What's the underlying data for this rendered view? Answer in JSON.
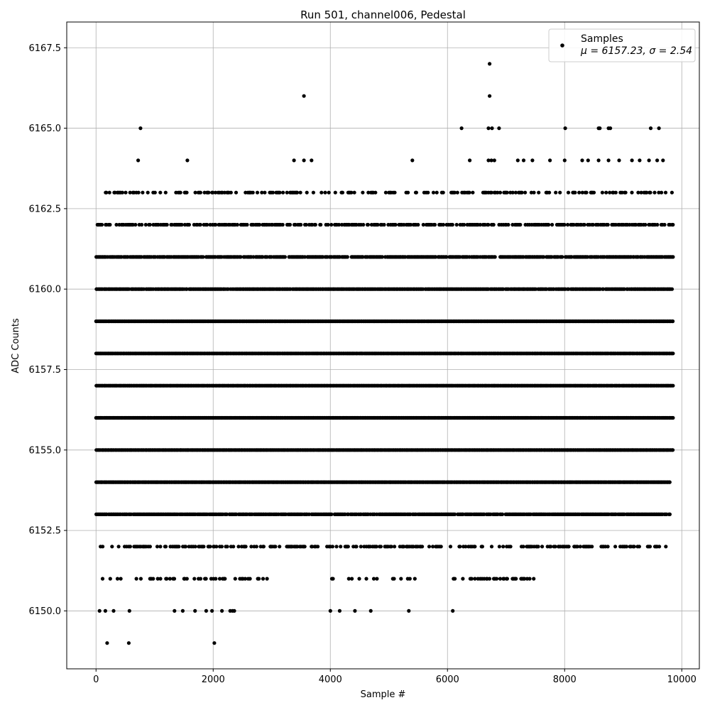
{
  "chart_data": {
    "type": "scatter",
    "title": "Run 501, channel006, Pedestal",
    "xlabel": "Sample #",
    "ylabel": "ADC Counts",
    "xlim": [
      -500,
      10300
    ],
    "ylim": [
      6148.2,
      6168.3
    ],
    "xticks": [
      0,
      2000,
      4000,
      6000,
      8000,
      10000
    ],
    "xtick_labels": [
      "0",
      "2000",
      "4000",
      "6000",
      "8000",
      "10000"
    ],
    "yticks": [
      6150.0,
      6152.5,
      6155.0,
      6157.5,
      6160.0,
      6162.5,
      6165.0,
      6167.5
    ],
    "ytick_labels": [
      "6150.0",
      "6152.5",
      "6155.0",
      "6157.5",
      "6160.0",
      "6162.5",
      "6165.0",
      "6167.5"
    ],
    "grid": true,
    "legend_position": "top-right",
    "marker_color": "#000000",
    "series": [
      {
        "name": "Samples",
        "name_line2": "μ = 6157.23, σ = 2.54",
        "x_range": [
          0,
          9850
        ],
        "sample_count": 9850,
        "mean": 6157.23,
        "sigma": 2.54,
        "dense_levels": [
          {
            "y": 6151,
            "density": 0.25,
            "x_segments": [
              [
                0,
                2950
              ],
              [
                4000,
                5500
              ],
              [
                6100,
                7650
              ]
            ]
          },
          {
            "y": 6152,
            "density": 0.45,
            "x_segments": [
              [
                0,
                2500
              ],
              [
                2500,
                5900
              ],
              [
                6050,
                9800
              ]
            ]
          },
          {
            "y": 6153,
            "density": 0.9,
            "x_segments": [
              [
                0,
                9800
              ]
            ]
          },
          {
            "y": 6154,
            "density": 1.0,
            "x_segments": [
              [
                0,
                9800
              ]
            ]
          },
          {
            "y": 6155,
            "density": 1.0,
            "x_segments": [
              [
                0,
                9850
              ]
            ]
          },
          {
            "y": 6156,
            "density": 1.0,
            "x_segments": [
              [
                0,
                9850
              ]
            ]
          },
          {
            "y": 6157,
            "density": 1.0,
            "x_segments": [
              [
                0,
                9850
              ]
            ]
          },
          {
            "y": 6158,
            "density": 1.0,
            "x_segments": [
              [
                0,
                9850
              ]
            ]
          },
          {
            "y": 6159,
            "density": 1.0,
            "x_segments": [
              [
                0,
                9850
              ]
            ]
          },
          {
            "y": 6160,
            "density": 0.95,
            "x_segments": [
              [
                0,
                9850
              ]
            ]
          },
          {
            "y": 6161,
            "density": 0.85,
            "x_segments": [
              [
                0,
                9850
              ]
            ]
          },
          {
            "y": 6162,
            "density": 0.6,
            "x_segments": [
              [
                0,
                9850
              ]
            ]
          },
          {
            "y": 6163,
            "density": 0.35,
            "x_segments": [
              [
                50,
                9850
              ]
            ]
          }
        ],
        "sparse_points": [
          [
            190,
            6149
          ],
          [
            560,
            6149
          ],
          [
            2020,
            6149
          ],
          [
            60,
            6150
          ],
          [
            160,
            6150
          ],
          [
            300,
            6150
          ],
          [
            570,
            6150
          ],
          [
            1340,
            6150
          ],
          [
            1480,
            6150
          ],
          [
            1690,
            6150
          ],
          [
            1880,
            6150
          ],
          [
            1980,
            6150
          ],
          [
            2150,
            6150
          ],
          [
            2290,
            6150
          ],
          [
            2330,
            6150
          ],
          [
            2360,
            6150
          ],
          [
            4000,
            6150
          ],
          [
            4160,
            6150
          ],
          [
            4420,
            6150
          ],
          [
            4690,
            6150
          ],
          [
            5340,
            6150
          ],
          [
            6090,
            6150
          ],
          [
            720,
            6164
          ],
          [
            1560,
            6164
          ],
          [
            3380,
            6164
          ],
          [
            3550,
            6164
          ],
          [
            3680,
            6164
          ],
          [
            5400,
            6164
          ],
          [
            6380,
            6164
          ],
          [
            6700,
            6164
          ],
          [
            6750,
            6164
          ],
          [
            6800,
            6164
          ],
          [
            7200,
            6164
          ],
          [
            7300,
            6164
          ],
          [
            7450,
            6164
          ],
          [
            7750,
            6164
          ],
          [
            8000,
            6164
          ],
          [
            8300,
            6164
          ],
          [
            8400,
            6164
          ],
          [
            8580,
            6164
          ],
          [
            8750,
            6164
          ],
          [
            8930,
            6164
          ],
          [
            9150,
            6164
          ],
          [
            9280,
            6164
          ],
          [
            9440,
            6164
          ],
          [
            9580,
            6164
          ],
          [
            9680,
            6164
          ],
          [
            760,
            6165
          ],
          [
            6240,
            6165
          ],
          [
            6700,
            6165
          ],
          [
            6760,
            6165
          ],
          [
            6880,
            6165
          ],
          [
            8010,
            6165
          ],
          [
            8580,
            6165
          ],
          [
            8600,
            6165
          ],
          [
            8750,
            6165
          ],
          [
            8780,
            6165
          ],
          [
            9470,
            6165
          ],
          [
            9610,
            6165
          ],
          [
            3550,
            6166
          ],
          [
            6720,
            6166
          ],
          [
            6720,
            6167
          ]
        ]
      }
    ]
  }
}
